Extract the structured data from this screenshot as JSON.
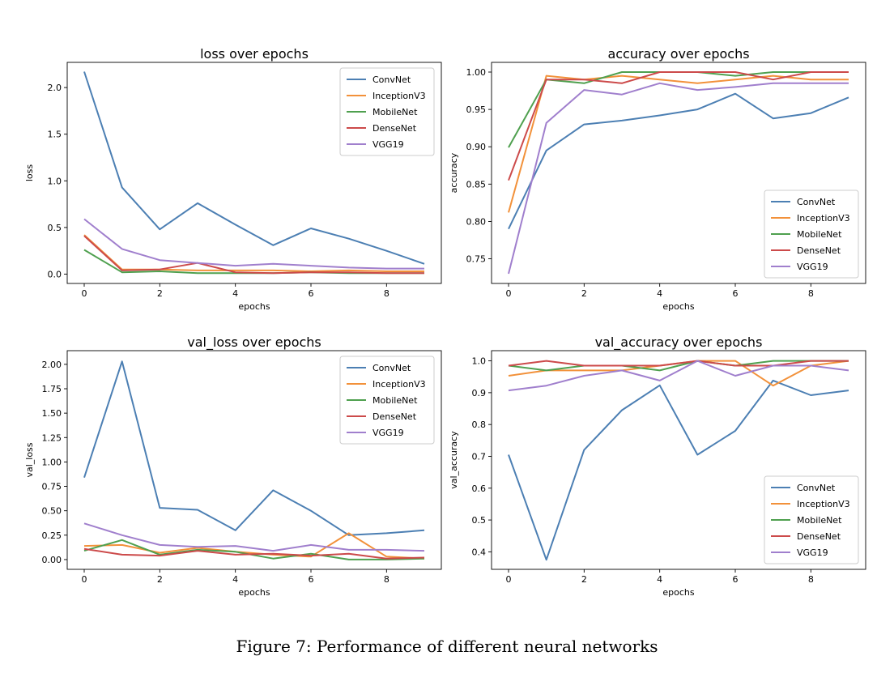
{
  "caption": "Figure 7: Performance of different neural networks",
  "colors": {
    "ConvNet": "#4c7fb3",
    "InceptionV3": "#f2913a",
    "MobileNet": "#4fa04f",
    "DenseNet": "#cc4a4a",
    "VGG19": "#a07fcd"
  },
  "chart_data": [
    {
      "type": "line",
      "title": "loss over epochs",
      "xlabel": "epochs",
      "ylabel": "loss",
      "xlim": [
        -0.45,
        9.45
      ],
      "ylim": [
        -0.1,
        2.27
      ],
      "xticks": [
        0,
        2,
        4,
        6,
        8
      ],
      "yticks": [
        0.0,
        0.5,
        1.0,
        1.5,
        2.0
      ],
      "ytick_decimals": 1,
      "legend": "top-right",
      "x": [
        0,
        1,
        2,
        3,
        4,
        5,
        6,
        7,
        8,
        9
      ],
      "series": [
        {
          "name": "ConvNet",
          "values": [
            2.17,
            0.93,
            0.48,
            0.76,
            0.53,
            0.31,
            0.49,
            0.38,
            0.25,
            0.11
          ]
        },
        {
          "name": "InceptionV3",
          "values": [
            0.42,
            0.05,
            0.05,
            0.04,
            0.04,
            0.04,
            0.03,
            0.04,
            0.03,
            0.03
          ]
        },
        {
          "name": "MobileNet",
          "values": [
            0.26,
            0.02,
            0.03,
            0.01,
            0.01,
            0.01,
            0.02,
            0.01,
            0.01,
            0.01
          ]
        },
        {
          "name": "DenseNet",
          "values": [
            0.41,
            0.04,
            0.05,
            0.12,
            0.02,
            0.01,
            0.02,
            0.02,
            0.01,
            0.01
          ]
        },
        {
          "name": "VGG19",
          "values": [
            0.59,
            0.27,
            0.15,
            0.12,
            0.09,
            0.11,
            0.09,
            0.07,
            0.06,
            0.06
          ]
        }
      ]
    },
    {
      "type": "line",
      "title": "accuracy over epochs",
      "xlabel": "epochs",
      "ylabel": "accuracy",
      "xlim": [
        -0.45,
        9.45
      ],
      "ylim": [
        0.717,
        1.013
      ],
      "xticks": [
        0,
        2,
        4,
        6,
        8
      ],
      "yticks": [
        0.75,
        0.8,
        0.85,
        0.9,
        0.95,
        1.0
      ],
      "ytick_decimals": 2,
      "legend": "bottom-right",
      "x": [
        0,
        1,
        2,
        3,
        4,
        5,
        6,
        7,
        8,
        9
      ],
      "series": [
        {
          "name": "ConvNet",
          "values": [
            0.79,
            0.895,
            0.93,
            0.935,
            0.942,
            0.95,
            0.971,
            0.938,
            0.945,
            0.966
          ]
        },
        {
          "name": "InceptionV3",
          "values": [
            0.812,
            0.995,
            0.99,
            0.995,
            0.99,
            0.985,
            0.99,
            0.995,
            0.99,
            0.99
          ]
        },
        {
          "name": "MobileNet",
          "values": [
            0.899,
            0.99,
            0.985,
            1.0,
            1.0,
            1.0,
            0.995,
            1.0,
            1.0,
            1.0
          ]
        },
        {
          "name": "DenseNet",
          "values": [
            0.855,
            0.99,
            0.99,
            0.985,
            1.0,
            1.0,
            1.0,
            0.99,
            1.0,
            1.0
          ]
        },
        {
          "name": "VGG19",
          "values": [
            0.73,
            0.932,
            0.976,
            0.97,
            0.985,
            0.976,
            0.98,
            0.985,
            0.985,
            0.985
          ]
        }
      ]
    },
    {
      "type": "line",
      "title": "val_loss over epochs",
      "xlabel": "epochs",
      "ylabel": "val_loss",
      "xlim": [
        -0.45,
        9.45
      ],
      "ylim": [
        -0.1,
        2.14
      ],
      "xticks": [
        0,
        2,
        4,
        6,
        8
      ],
      "yticks": [
        0.0,
        0.25,
        0.5,
        0.75,
        1.0,
        1.25,
        1.5,
        1.75,
        2.0
      ],
      "ytick_decimals": 2,
      "legend": "top-right",
      "x": [
        0,
        1,
        2,
        3,
        4,
        5,
        6,
        7,
        8,
        9
      ],
      "series": [
        {
          "name": "ConvNet",
          "values": [
            0.84,
            2.03,
            0.53,
            0.51,
            0.3,
            0.71,
            0.5,
            0.25,
            0.27,
            0.3
          ]
        },
        {
          "name": "InceptionV3",
          "values": [
            0.14,
            0.15,
            0.07,
            0.12,
            0.08,
            0.05,
            0.03,
            0.27,
            0.03,
            0.01
          ]
        },
        {
          "name": "MobileNet",
          "values": [
            0.09,
            0.2,
            0.05,
            0.1,
            0.08,
            0.01,
            0.06,
            0.0,
            0.0,
            0.01
          ]
        },
        {
          "name": "DenseNet",
          "values": [
            0.11,
            0.05,
            0.04,
            0.09,
            0.05,
            0.06,
            0.04,
            0.06,
            0.01,
            0.02
          ]
        },
        {
          "name": "VGG19",
          "values": [
            0.37,
            0.25,
            0.15,
            0.13,
            0.14,
            0.09,
            0.15,
            0.1,
            0.1,
            0.09
          ]
        }
      ]
    },
    {
      "type": "line",
      "title": "val_accuracy over epochs",
      "xlabel": "epochs",
      "ylabel": "val_accuracy",
      "xlim": [
        -0.45,
        9.45
      ],
      "ylim": [
        0.345,
        1.032
      ],
      "xticks": [
        0,
        2,
        4,
        6,
        8
      ],
      "yticks": [
        0.4,
        0.5,
        0.6,
        0.7,
        0.8,
        0.9,
        1.0
      ],
      "ytick_decimals": 1,
      "legend": "bottom-right",
      "x": [
        0,
        1,
        2,
        3,
        4,
        5,
        6,
        7,
        8,
        9
      ],
      "series": [
        {
          "name": "ConvNet",
          "values": [
            0.705,
            0.375,
            0.72,
            0.845,
            0.923,
            0.705,
            0.78,
            0.938,
            0.892,
            0.907
          ]
        },
        {
          "name": "InceptionV3",
          "values": [
            0.953,
            0.97,
            0.97,
            0.97,
            0.985,
            1.0,
            1.0,
            0.922,
            0.985,
            1.0
          ]
        },
        {
          "name": "MobileNet",
          "values": [
            0.985,
            0.97,
            0.985,
            0.985,
            0.97,
            1.0,
            0.985,
            1.0,
            1.0,
            1.0
          ]
        },
        {
          "name": "DenseNet",
          "values": [
            0.985,
            1.0,
            0.985,
            0.985,
            0.985,
            1.0,
            0.985,
            0.985,
            1.0,
            1.0
          ]
        },
        {
          "name": "VGG19",
          "values": [
            0.907,
            0.922,
            0.953,
            0.97,
            0.938,
            1.0,
            0.953,
            0.985,
            0.985,
            0.97
          ]
        }
      ]
    }
  ]
}
